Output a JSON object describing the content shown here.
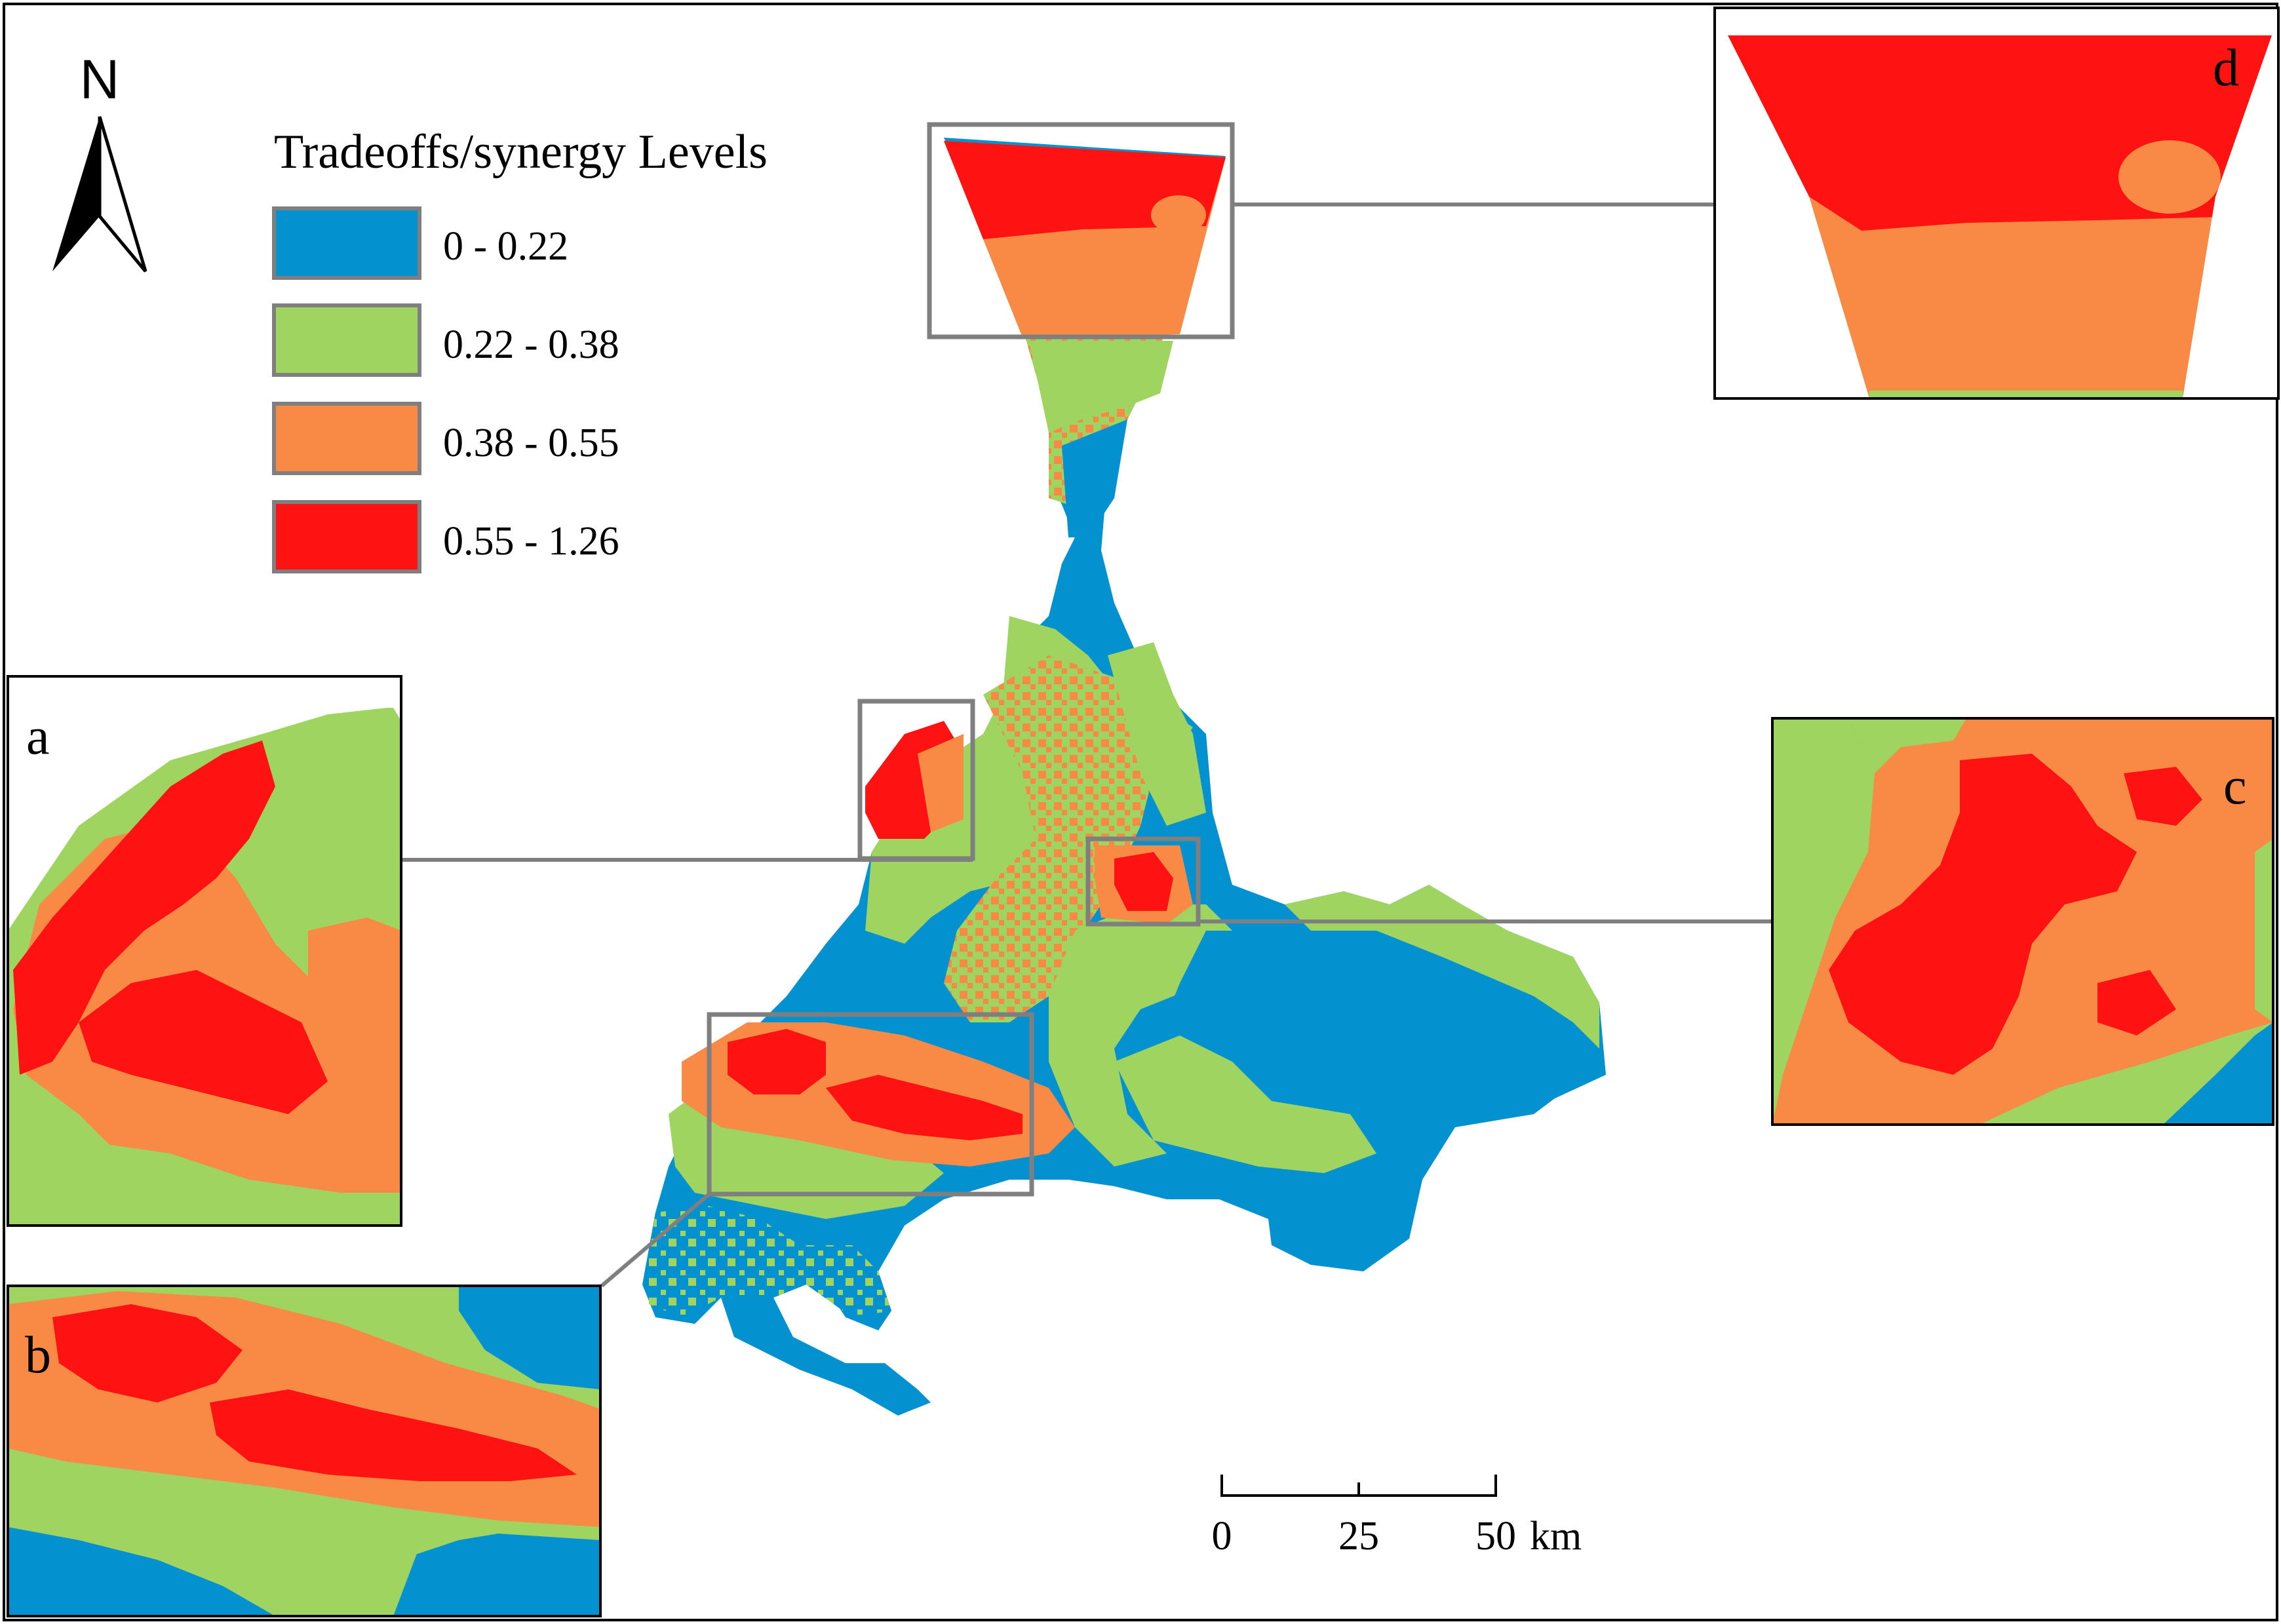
{
  "legend": {
    "title": "Tradeoffs/synergy Levels",
    "classes": [
      {
        "label": "0 - 0.22",
        "color": "#0392cf"
      },
      {
        "label": "0.22 - 0.38",
        "color": "#9ed45f"
      },
      {
        "label": "0.38 - 0.55",
        "color": "#f88a45"
      },
      {
        "label": "0.55 - 1.26",
        "color": "#fe1212"
      }
    ]
  },
  "north_arrow": {
    "label": "N"
  },
  "scale_bar": {
    "ticks": [
      "0",
      "25",
      "50"
    ],
    "unit": "km"
  },
  "insets": {
    "a": {
      "label": "a"
    },
    "b": {
      "label": "b"
    },
    "c": {
      "label": "c"
    },
    "d": {
      "label": "d"
    }
  },
  "colors": {
    "blue": "#0392cf",
    "green": "#9ed45f",
    "orange": "#f88a45",
    "red": "#fe1212",
    "frame": "#7f7f7f"
  }
}
